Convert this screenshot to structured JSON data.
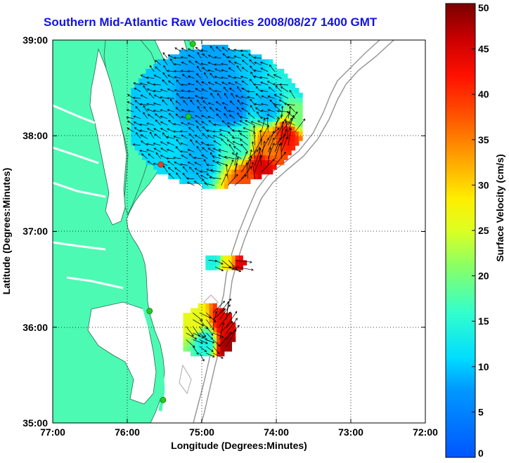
{
  "title": "Southern Mid-Atlantic Raw Velocities 2008/08/27 1400 GMT",
  "chart_data": {
    "type": "heatmap",
    "title": "Southern Mid-Atlantic Raw Velocities 2008/08/27 1400 GMT",
    "xlabel": "Longitude (Degrees:Minutes)",
    "ylabel": "Latitude (Degrees:Minutes)",
    "xlim": [
      -77,
      -72
    ],
    "ylim": [
      35,
      39
    ],
    "xticks": [
      -77,
      -76,
      -75,
      -74,
      -73,
      -72
    ],
    "xtick_labels": [
      "77:00",
      "76:00",
      "75:00",
      "74:00",
      "73:00",
      "72:00"
    ],
    "yticks": [
      39,
      38,
      37,
      36,
      35
    ],
    "ytick_labels": [
      "39:00",
      "38:00",
      "37:00",
      "36:00",
      "35:00"
    ],
    "grid": true,
    "colorbar": {
      "label": "Surface Velocity (cm/s)",
      "min": 0,
      "max": 50,
      "ticks": [
        0,
        5,
        10,
        15,
        20,
        25,
        30,
        35,
        40,
        45,
        50
      ],
      "tick_labels": [
        "0",
        "5",
        "10",
        "15",
        "20",
        "25",
        "30",
        "35",
        "40",
        "45",
        "50"
      ]
    },
    "regions": [
      {
        "lon_range": [
          -75.95,
          -73.7
        ],
        "lat_range": [
          37.45,
          38.95
        ],
        "cells": [
          {
            "lon": -74.8,
            "lat": 38.7,
            "v": 8
          },
          {
            "lon": -74.3,
            "lat": 38.8,
            "v": 10
          },
          {
            "lon": -73.9,
            "lat": 38.7,
            "v": 14
          },
          {
            "lon": -73.6,
            "lat": 38.55,
            "v": 12
          },
          {
            "lon": -75.6,
            "lat": 38.4,
            "v": 10
          },
          {
            "lon": -75.1,
            "lat": 38.4,
            "v": 7
          },
          {
            "lon": -74.6,
            "lat": 38.3,
            "v": 6
          },
          {
            "lon": -74.1,
            "lat": 38.3,
            "v": 9
          },
          {
            "lon": -73.7,
            "lat": 38.2,
            "v": 20
          },
          {
            "lon": -75.5,
            "lat": 37.9,
            "v": 11
          },
          {
            "lon": -75.0,
            "lat": 37.8,
            "v": 9
          },
          {
            "lon": -74.5,
            "lat": 37.9,
            "v": 16
          },
          {
            "lon": -74.1,
            "lat": 37.9,
            "v": 35
          },
          {
            "lon": -73.85,
            "lat": 38.0,
            "v": 42
          },
          {
            "lon": -74.2,
            "lat": 37.65,
            "v": 45
          },
          {
            "lon": -74.4,
            "lat": 37.55,
            "v": 38
          }
        ]
      },
      {
        "lon_range": [
          -74.95,
          -74.45
        ],
        "lat_range": [
          36.6,
          36.75
        ],
        "cells": [
          {
            "lon": -74.85,
            "lat": 36.7,
            "v": 14
          },
          {
            "lon": -74.65,
            "lat": 36.65,
            "v": 28
          },
          {
            "lon": -74.5,
            "lat": 36.62,
            "v": 45
          }
        ]
      },
      {
        "lon_range": [
          -75.25,
          -74.6
        ],
        "lat_range": [
          35.7,
          36.2
        ],
        "cells": [
          {
            "lon": -75.1,
            "lat": 36.05,
            "v": 26
          },
          {
            "lon": -74.95,
            "lat": 35.85,
            "v": 14
          },
          {
            "lon": -74.7,
            "lat": 36.05,
            "v": 44
          },
          {
            "lon": -74.65,
            "lat": 35.8,
            "v": 48
          }
        ]
      }
    ],
    "site_markers": [
      {
        "lon": -75.12,
        "lat": 38.96,
        "color": "#22cc22"
      },
      {
        "lon": -75.18,
        "lat": 38.2,
        "color": "#22cc22"
      },
      {
        "lon": -75.55,
        "lat": 37.7,
        "color": "#ff3333"
      },
      {
        "lon": -75.7,
        "lat": 36.17,
        "color": "#22cc22"
      },
      {
        "lon": -75.52,
        "lat": 35.24,
        "color": "#22cc22"
      }
    ]
  }
}
